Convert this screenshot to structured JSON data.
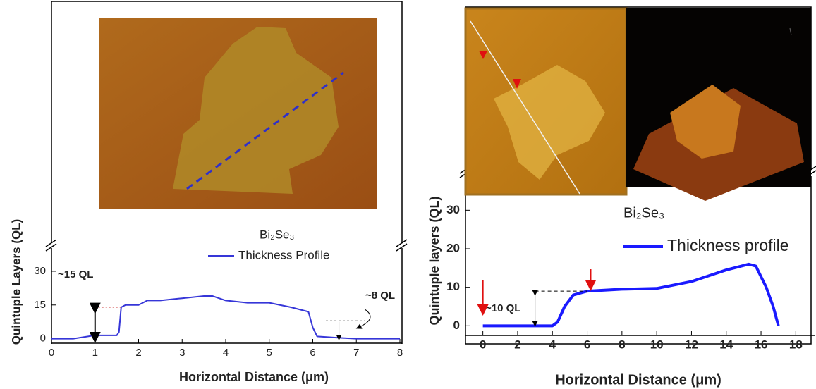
{
  "chart_data": [
    {
      "type": "line",
      "formula": "Bi₂Se₃",
      "xlabel": "Horizontal Distance (μm)",
      "ylabel": "Quintuple Layers (QL)",
      "x": [
        0,
        0.5,
        1,
        1.5,
        1.55,
        1.6,
        1.7,
        2,
        2.2,
        2.5,
        3,
        3.5,
        3.7,
        4,
        4.5,
        5,
        5.5,
        5.9,
        6.0,
        6.1,
        6.5,
        7,
        8
      ],
      "series": [
        {
          "name": "Thickness Profile",
          "color": "#3636d8",
          "values": [
            0,
            0,
            1.5,
            1.5,
            3,
            14,
            15,
            15,
            17,
            17,
            18,
            19,
            19,
            17,
            16,
            16,
            14,
            12,
            5,
            1,
            0.5,
            0,
            0
          ]
        }
      ],
      "xlim": [
        0,
        8
      ],
      "ylim": [
        -2,
        35
      ],
      "xticks": [
        0,
        1,
        2,
        3,
        4,
        5,
        6,
        7,
        8
      ],
      "yticks": [
        0,
        15,
        30
      ],
      "annotations": [
        "~15 QL",
        "~8 QL"
      ]
    },
    {
      "type": "line",
      "formula": "Bi₂Se₃",
      "xlabel": "Horizontal Distance (μm)",
      "ylabel": "Quintuple layers (QL)",
      "x": [
        0,
        4,
        4.3,
        4.7,
        5.2,
        6,
        8,
        10,
        12,
        14,
        15.3,
        15.7,
        16.3,
        16.7,
        17
      ],
      "series": [
        {
          "name": "Thickness profile",
          "color": "#1a1aff",
          "values": [
            0,
            0,
            1,
            5,
            8,
            9,
            9.5,
            9.7,
            11.5,
            14.5,
            16,
            15.5,
            10,
            5,
            0
          ]
        }
      ],
      "xlim": [
        -1,
        19
      ],
      "ylim": [
        -2.5,
        35
      ],
      "xticks": [
        0,
        2,
        4,
        6,
        8,
        10,
        12,
        14,
        16,
        18
      ],
      "yticks": [
        0,
        10,
        20,
        30
      ],
      "annotations": [
        "~10 QL"
      ]
    }
  ]
}
